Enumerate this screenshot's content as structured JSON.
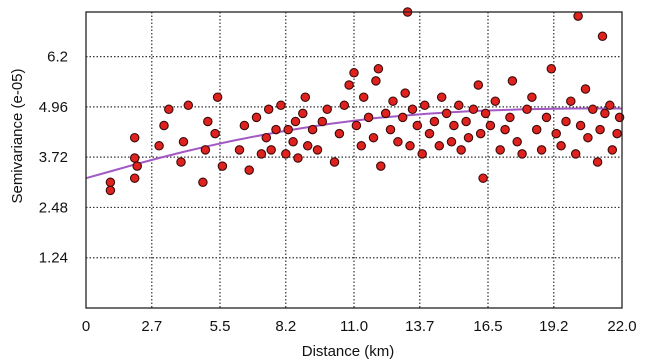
{
  "chart_data": {
    "type": "scatter",
    "title": "",
    "xlabel": "Distance (km)",
    "ylabel": "Semivariance (e-05)",
    "xlim": [
      0,
      22.0
    ],
    "ylim": [
      0,
      7.3
    ],
    "x_ticks": [
      "0",
      "2.7",
      "5.5",
      "8.2",
      "11.0",
      "13.7",
      "16.5",
      "19.2",
      "22.0"
    ],
    "x_tick_values": [
      0,
      2.7,
      5.5,
      8.2,
      11.0,
      13.7,
      16.5,
      19.2,
      22.0
    ],
    "y_ticks": [
      "1.24",
      "2.48",
      "3.72",
      "4.96",
      "6.2"
    ],
    "y_tick_values": [
      1.24,
      2.48,
      3.72,
      4.96,
      6.2
    ],
    "grid": true,
    "colors": {
      "points": "#e0221f",
      "point_edge": "#3a0a0a",
      "model_line": "#a259c4",
      "grid": "#333333"
    },
    "series": [
      {
        "kind": "points",
        "x": [
          1.0,
          1.0,
          2.0,
          2.0,
          2.0,
          2.1,
          3.0,
          3.2,
          3.4,
          3.9,
          4.0,
          4.2,
          4.8,
          4.9,
          5.0,
          5.3,
          5.4,
          5.6,
          6.3,
          6.5,
          6.7,
          7.0,
          7.2,
          7.4,
          7.5,
          7.6,
          7.8,
          8.0,
          8.2,
          8.3,
          8.5,
          8.6,
          8.7,
          8.9,
          9.0,
          9.1,
          9.3,
          9.5,
          9.7,
          9.9,
          10.2,
          10.4,
          10.6,
          10.8,
          11.0,
          11.1,
          11.3,
          11.4,
          11.6,
          11.8,
          11.9,
          12.1,
          12.3,
          12.5,
          12.6,
          12.8,
          13.0,
          13.1,
          13.3,
          13.4,
          13.6,
          13.8,
          13.9,
          14.1,
          14.3,
          14.5,
          14.6,
          14.8,
          15.0,
          15.1,
          15.3,
          15.4,
          15.6,
          15.7,
          15.9,
          16.1,
          16.2,
          16.3,
          16.4,
          16.6,
          16.8,
          17.0,
          17.2,
          17.4,
          17.5,
          17.7,
          17.9,
          18.1,
          18.3,
          18.5,
          18.7,
          18.9,
          19.1,
          19.3,
          19.5,
          19.7,
          19.9,
          20.1,
          20.3,
          20.5,
          20.6,
          20.8,
          21.0,
          21.1,
          21.3,
          21.5,
          21.6,
          21.8,
          21.9,
          13.2,
          12.0,
          20.2,
          21.2
        ],
        "y": [
          2.9,
          3.1,
          3.2,
          3.7,
          4.2,
          3.5,
          4.0,
          4.5,
          4.9,
          3.6,
          4.1,
          5.0,
          3.1,
          3.9,
          4.6,
          4.3,
          5.2,
          3.5,
          3.9,
          4.5,
          3.4,
          4.7,
          3.8,
          4.2,
          4.9,
          3.9,
          4.4,
          5.0,
          3.8,
          4.4,
          4.1,
          4.6,
          3.7,
          4.8,
          5.2,
          4.0,
          4.4,
          3.9,
          4.6,
          4.9,
          3.6,
          4.3,
          5.0,
          5.5,
          5.8,
          4.5,
          4.0,
          5.2,
          4.7,
          4.2,
          5.6,
          3.5,
          4.8,
          4.4,
          5.1,
          4.1,
          4.7,
          5.3,
          4.0,
          4.9,
          4.5,
          3.8,
          5.0,
          4.3,
          4.6,
          4.0,
          5.2,
          4.8,
          4.1,
          4.5,
          5.0,
          3.9,
          4.6,
          4.2,
          4.9,
          5.5,
          4.3,
          3.2,
          4.8,
          4.5,
          5.1,
          3.9,
          4.4,
          4.7,
          5.6,
          4.1,
          3.8,
          4.9,
          5.2,
          4.4,
          3.9,
          4.7,
          5.9,
          4.3,
          4.0,
          4.6,
          5.1,
          3.8,
          4.5,
          5.4,
          4.2,
          4.9,
          3.6,
          4.4,
          4.8,
          5.0,
          3.9,
          4.3,
          4.7,
          7.3,
          5.9,
          7.2,
          6.7
        ],
        "name": ""
      },
      {
        "kind": "line",
        "x": [
          0,
          1,
          2,
          3,
          4,
          5,
          6,
          7,
          8,
          9,
          10,
          11,
          12,
          13,
          14,
          15,
          16,
          17,
          18,
          19,
          20,
          21,
          22
        ],
        "y": [
          3.2,
          3.37,
          3.54,
          3.7,
          3.85,
          3.99,
          4.12,
          4.24,
          4.35,
          4.45,
          4.54,
          4.62,
          4.69,
          4.74,
          4.79,
          4.83,
          4.86,
          4.88,
          4.9,
          4.91,
          4.92,
          4.92,
          4.92
        ],
        "name": ""
      }
    ]
  }
}
